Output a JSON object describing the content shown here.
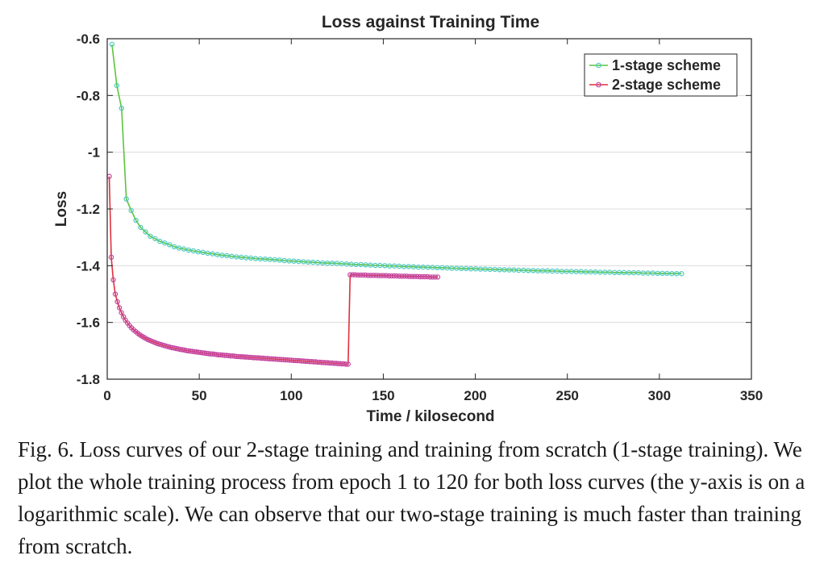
{
  "chart_data": {
    "type": "line",
    "title": "Loss against Training Time",
    "xlabel": "Time / kilosecond",
    "ylabel": "Loss",
    "xlim": [
      0,
      350
    ],
    "ylim": [
      -1.8,
      -0.6
    ],
    "xticks": [
      0,
      50,
      100,
      150,
      200,
      250,
      300,
      350
    ],
    "xtick_labels": [
      "0",
      "50",
      "100",
      "150",
      "200",
      "250",
      "300",
      "350"
    ],
    "yticks": [
      -0.6,
      -0.8,
      -1,
      -1.2,
      -1.4,
      -1.6,
      -1.8
    ],
    "ytick_labels": [
      "-0.6",
      "-0.8",
      "-1",
      "-1.2",
      "-1.4",
      "-1.6",
      "-1.8"
    ],
    "grid": "horizontal",
    "legend_position": "top-right",
    "series": [
      {
        "name": "1-stage scheme",
        "line_color": "#5cc43c",
        "marker_color": "#4ec9c2",
        "points": [
          [
            2.6,
            -0.62
          ],
          [
            5.2,
            -0.765
          ],
          [
            7.8,
            -0.845
          ],
          [
            10.4,
            -1.165
          ],
          [
            13.0,
            -1.205
          ],
          [
            15.6,
            -1.24
          ],
          [
            18.2,
            -1.265
          ],
          [
            20.8,
            -1.281
          ],
          [
            23.4,
            -1.296
          ],
          [
            26.0,
            -1.305
          ],
          [
            28.6,
            -1.314
          ],
          [
            31.2,
            -1.32
          ],
          [
            33.8,
            -1.326
          ],
          [
            36.4,
            -1.333
          ],
          [
            39.0,
            -1.338
          ],
          [
            41.6,
            -1.341
          ],
          [
            44.2,
            -1.345
          ],
          [
            46.8,
            -1.348
          ],
          [
            49.4,
            -1.351
          ],
          [
            52.0,
            -1.353
          ],
          [
            54.6,
            -1.356
          ],
          [
            57.2,
            -1.358
          ],
          [
            59.8,
            -1.361
          ],
          [
            62.4,
            -1.363
          ],
          [
            65.0,
            -1.365
          ],
          [
            67.6,
            -1.367
          ],
          [
            70.2,
            -1.369
          ],
          [
            72.8,
            -1.37
          ],
          [
            75.4,
            -1.372
          ],
          [
            78.0,
            -1.373
          ],
          [
            80.6,
            -1.375
          ],
          [
            83.2,
            -1.376
          ],
          [
            85.8,
            -1.377
          ],
          [
            88.4,
            -1.378
          ],
          [
            91.0,
            -1.379
          ],
          [
            93.6,
            -1.38
          ],
          [
            96.2,
            -1.382
          ],
          [
            98.8,
            -1.383
          ],
          [
            101.4,
            -1.384
          ],
          [
            104.0,
            -1.385
          ],
          [
            106.6,
            -1.386
          ],
          [
            109.2,
            -1.387
          ],
          [
            111.8,
            -1.388
          ],
          [
            114.4,
            -1.389
          ],
          [
            117.0,
            -1.39
          ],
          [
            119.6,
            -1.391
          ],
          [
            122.2,
            -1.391
          ],
          [
            124.8,
            -1.392
          ],
          [
            127.4,
            -1.393
          ],
          [
            130.0,
            -1.394
          ],
          [
            132.6,
            -1.395
          ],
          [
            135.2,
            -1.396
          ],
          [
            137.8,
            -1.396
          ],
          [
            140.4,
            -1.397
          ],
          [
            143.0,
            -1.398
          ],
          [
            145.6,
            -1.399
          ],
          [
            148.2,
            -1.399
          ],
          [
            150.8,
            -1.4
          ],
          [
            153.4,
            -1.401
          ],
          [
            156.0,
            -1.401
          ],
          [
            158.6,
            -1.402
          ],
          [
            161.2,
            -1.403
          ],
          [
            163.8,
            -1.403
          ],
          [
            166.4,
            -1.404
          ],
          [
            169.0,
            -1.405
          ],
          [
            171.6,
            -1.405
          ],
          [
            174.2,
            -1.406
          ],
          [
            176.8,
            -1.406
          ],
          [
            179.4,
            -1.407
          ],
          [
            182.0,
            -1.407
          ],
          [
            184.6,
            -1.408
          ],
          [
            187.2,
            -1.409
          ],
          [
            189.8,
            -1.409
          ],
          [
            192.4,
            -1.41
          ],
          [
            195.0,
            -1.41
          ],
          [
            197.6,
            -1.411
          ],
          [
            200.2,
            -1.411
          ],
          [
            202.8,
            -1.412
          ],
          [
            205.4,
            -1.412
          ],
          [
            208.0,
            -1.413
          ],
          [
            210.6,
            -1.413
          ],
          [
            213.2,
            -1.414
          ],
          [
            215.8,
            -1.414
          ],
          [
            218.4,
            -1.415
          ],
          [
            221.0,
            -1.415
          ],
          [
            223.6,
            -1.416
          ],
          [
            226.2,
            -1.416
          ],
          [
            228.8,
            -1.417
          ],
          [
            231.4,
            -1.417
          ],
          [
            234.0,
            -1.418
          ],
          [
            236.6,
            -1.418
          ],
          [
            239.2,
            -1.418
          ],
          [
            241.8,
            -1.419
          ],
          [
            244.4,
            -1.419
          ],
          [
            247.0,
            -1.42
          ],
          [
            249.6,
            -1.42
          ],
          [
            252.2,
            -1.42
          ],
          [
            254.8,
            -1.421
          ],
          [
            257.4,
            -1.421
          ],
          [
            260.0,
            -1.422
          ],
          [
            262.6,
            -1.422
          ],
          [
            265.2,
            -1.422
          ],
          [
            267.8,
            -1.423
          ],
          [
            270.4,
            -1.423
          ],
          [
            273.0,
            -1.423
          ],
          [
            275.6,
            -1.424
          ],
          [
            278.2,
            -1.424
          ],
          [
            280.8,
            -1.424
          ],
          [
            283.4,
            -1.425
          ],
          [
            286.0,
            -1.425
          ],
          [
            288.6,
            -1.425
          ],
          [
            291.2,
            -1.426
          ],
          [
            293.8,
            -1.426
          ],
          [
            296.4,
            -1.426
          ],
          [
            299.0,
            -1.427
          ],
          [
            301.6,
            -1.427
          ],
          [
            304.2,
            -1.427
          ],
          [
            306.8,
            -1.428
          ],
          [
            309.4,
            -1.428
          ],
          [
            312.0,
            -1.428
          ]
        ]
      },
      {
        "name": "2-stage scheme",
        "line_color": "#e0303c",
        "marker_color": "#c444a0",
        "points": [
          [
            1.1,
            -1.085
          ],
          [
            2.2,
            -1.37
          ],
          [
            3.3,
            -1.45
          ],
          [
            4.4,
            -1.5
          ],
          [
            5.5,
            -1.527
          ],
          [
            6.6,
            -1.548
          ],
          [
            7.7,
            -1.565
          ],
          [
            8.8,
            -1.58
          ],
          [
            9.9,
            -1.592
          ],
          [
            11.0,
            -1.602
          ],
          [
            12.1,
            -1.611
          ],
          [
            13.2,
            -1.619
          ],
          [
            14.3,
            -1.626
          ],
          [
            15.4,
            -1.632
          ],
          [
            16.5,
            -1.638
          ],
          [
            17.6,
            -1.643
          ],
          [
            18.7,
            -1.648
          ],
          [
            19.8,
            -1.652
          ],
          [
            20.9,
            -1.656
          ],
          [
            22.0,
            -1.66
          ],
          [
            23.1,
            -1.663
          ],
          [
            24.2,
            -1.666
          ],
          [
            25.3,
            -1.669
          ],
          [
            26.4,
            -1.672
          ],
          [
            27.5,
            -1.675
          ],
          [
            28.6,
            -1.677
          ],
          [
            29.7,
            -1.679
          ],
          [
            30.8,
            -1.681
          ],
          [
            31.9,
            -1.683
          ],
          [
            33.0,
            -1.685
          ],
          [
            34.1,
            -1.687
          ],
          [
            35.2,
            -1.689
          ],
          [
            36.3,
            -1.69
          ],
          [
            37.4,
            -1.692
          ],
          [
            38.5,
            -1.693
          ],
          [
            39.6,
            -1.695
          ],
          [
            40.7,
            -1.696
          ],
          [
            41.8,
            -1.697
          ],
          [
            42.9,
            -1.699
          ],
          [
            44.0,
            -1.7
          ],
          [
            45.1,
            -1.701
          ],
          [
            46.2,
            -1.702
          ],
          [
            47.3,
            -1.703
          ],
          [
            48.4,
            -1.704
          ],
          [
            49.5,
            -1.705
          ],
          [
            50.6,
            -1.706
          ],
          [
            51.7,
            -1.707
          ],
          [
            52.8,
            -1.708
          ],
          [
            53.9,
            -1.709
          ],
          [
            55.0,
            -1.71
          ],
          [
            56.1,
            -1.711
          ],
          [
            57.2,
            -1.711
          ],
          [
            58.3,
            -1.712
          ],
          [
            59.4,
            -1.713
          ],
          [
            60.5,
            -1.714
          ],
          [
            61.6,
            -1.714
          ],
          [
            62.7,
            -1.715
          ],
          [
            63.8,
            -1.716
          ],
          [
            64.9,
            -1.716
          ],
          [
            66.0,
            -1.717
          ],
          [
            67.1,
            -1.718
          ],
          [
            68.2,
            -1.718
          ],
          [
            69.3,
            -1.719
          ],
          [
            70.4,
            -1.72
          ],
          [
            71.5,
            -1.72
          ],
          [
            72.6,
            -1.721
          ],
          [
            73.7,
            -1.721
          ],
          [
            74.8,
            -1.722
          ],
          [
            75.9,
            -1.722
          ],
          [
            77.0,
            -1.723
          ],
          [
            78.1,
            -1.723
          ],
          [
            79.2,
            -1.724
          ],
          [
            80.3,
            -1.724
          ],
          [
            81.4,
            -1.725
          ],
          [
            82.5,
            -1.725
          ],
          [
            83.6,
            -1.726
          ],
          [
            84.7,
            -1.726
          ],
          [
            85.8,
            -1.727
          ],
          [
            86.9,
            -1.727
          ],
          [
            88.0,
            -1.728
          ],
          [
            89.1,
            -1.728
          ],
          [
            90.2,
            -1.729
          ],
          [
            91.3,
            -1.729
          ],
          [
            92.4,
            -1.73
          ],
          [
            93.5,
            -1.73
          ],
          [
            94.6,
            -1.731
          ],
          [
            95.7,
            -1.731
          ],
          [
            96.8,
            -1.732
          ],
          [
            97.9,
            -1.732
          ],
          [
            99.0,
            -1.733
          ],
          [
            100.1,
            -1.733
          ],
          [
            101.2,
            -1.734
          ],
          [
            102.3,
            -1.734
          ],
          [
            103.4,
            -1.735
          ],
          [
            104.5,
            -1.735
          ],
          [
            105.6,
            -1.736
          ],
          [
            106.7,
            -1.736
          ],
          [
            107.8,
            -1.737
          ],
          [
            108.9,
            -1.737
          ],
          [
            110.0,
            -1.738
          ],
          [
            111.1,
            -1.738
          ],
          [
            112.2,
            -1.739
          ],
          [
            113.3,
            -1.739
          ],
          [
            114.4,
            -1.74
          ],
          [
            115.5,
            -1.74
          ],
          [
            116.6,
            -1.741
          ],
          [
            117.7,
            -1.741
          ],
          [
            118.8,
            -1.742
          ],
          [
            119.9,
            -1.742
          ],
          [
            121.0,
            -1.743
          ],
          [
            122.1,
            -1.743
          ],
          [
            123.2,
            -1.744
          ],
          [
            124.3,
            -1.744
          ],
          [
            125.4,
            -1.745
          ],
          [
            126.5,
            -1.745
          ],
          [
            127.6,
            -1.746
          ],
          [
            128.7,
            -1.746
          ],
          [
            129.8,
            -1.747
          ],
          [
            130.9,
            -1.747
          ],
          [
            132.0,
            -1.432
          ],
          [
            133.4,
            -1.432
          ],
          [
            134.8,
            -1.432
          ],
          [
            136.2,
            -1.433
          ],
          [
            137.6,
            -1.433
          ],
          [
            139.0,
            -1.433
          ],
          [
            140.4,
            -1.433
          ],
          [
            141.8,
            -1.434
          ],
          [
            143.2,
            -1.434
          ],
          [
            144.6,
            -1.434
          ],
          [
            146.0,
            -1.434
          ],
          [
            147.4,
            -1.435
          ],
          [
            148.8,
            -1.435
          ],
          [
            150.2,
            -1.435
          ],
          [
            151.6,
            -1.435
          ],
          [
            153.0,
            -1.436
          ],
          [
            154.4,
            -1.436
          ],
          [
            155.8,
            -1.436
          ],
          [
            157.2,
            -1.436
          ],
          [
            158.6,
            -1.437
          ],
          [
            160.0,
            -1.437
          ],
          [
            161.4,
            -1.437
          ],
          [
            162.8,
            -1.437
          ],
          [
            164.2,
            -1.438
          ],
          [
            165.6,
            -1.438
          ],
          [
            167.0,
            -1.438
          ],
          [
            168.4,
            -1.438
          ],
          [
            169.8,
            -1.439
          ],
          [
            171.2,
            -1.439
          ],
          [
            172.6,
            -1.439
          ],
          [
            174.0,
            -1.439
          ],
          [
            175.4,
            -1.44
          ],
          [
            176.8,
            -1.44
          ],
          [
            178.2,
            -1.44
          ],
          [
            179.6,
            -1.44
          ]
        ]
      }
    ]
  },
  "caption": "Fig. 6.  Loss curves of our 2-stage training and training from scratch (1-stage training). We plot the whole training process from epoch 1 to 120 for both loss curves (the y-axis is on a logarithmic scale). We can observe that our two-stage training is much faster than training from scratch."
}
